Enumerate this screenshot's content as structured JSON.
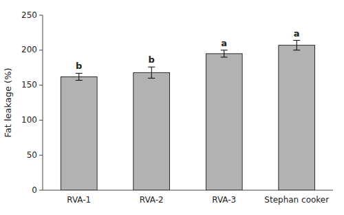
{
  "chart_data": {
    "type": "bar",
    "categories": [
      "RVA-1",
      "RVA-2",
      "RVA-3",
      "Stephan cooker"
    ],
    "values": [
      162,
      168,
      195,
      207
    ],
    "errors": [
      5,
      8,
      5,
      7
    ],
    "annotations": [
      "b",
      "b",
      "a",
      "a"
    ],
    "color": "#b2b2b2",
    "ylabel": "Fat leakage (%)",
    "ylim": [
      0,
      250
    ],
    "yticks": [
      0,
      50,
      100,
      150,
      200,
      250
    ],
    "grid": false
  }
}
